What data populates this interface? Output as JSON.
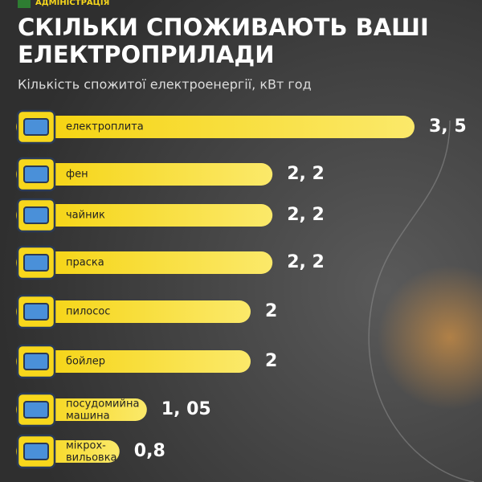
{
  "header": {
    "org": "АДМІНІСТРАЦІЯ"
  },
  "chart_data": {
    "type": "bar",
    "title": "СКІЛЬКИ СПОЖИВАЮТЬ ВАШІ\nЕЛЕКТРОПРИЛАДИ",
    "subtitle": "Кількість спожитої електроенергії, кВт год",
    "categories": [
      "електроплита",
      "фен",
      "чайник",
      "праска",
      "пилосос",
      "бойлер",
      "посудомийна\nмашина",
      "мікрох-\nвильовка"
    ],
    "values": [
      3.5,
      2.2,
      2.2,
      2.2,
      2,
      2,
      1.05,
      0.8
    ],
    "value_labels": [
      "3, 5",
      "2, 2",
      "2, 2",
      "2, 2",
      "2",
      "2",
      "1, 05",
      "0,8"
    ],
    "color": "#f7d71c"
  }
}
